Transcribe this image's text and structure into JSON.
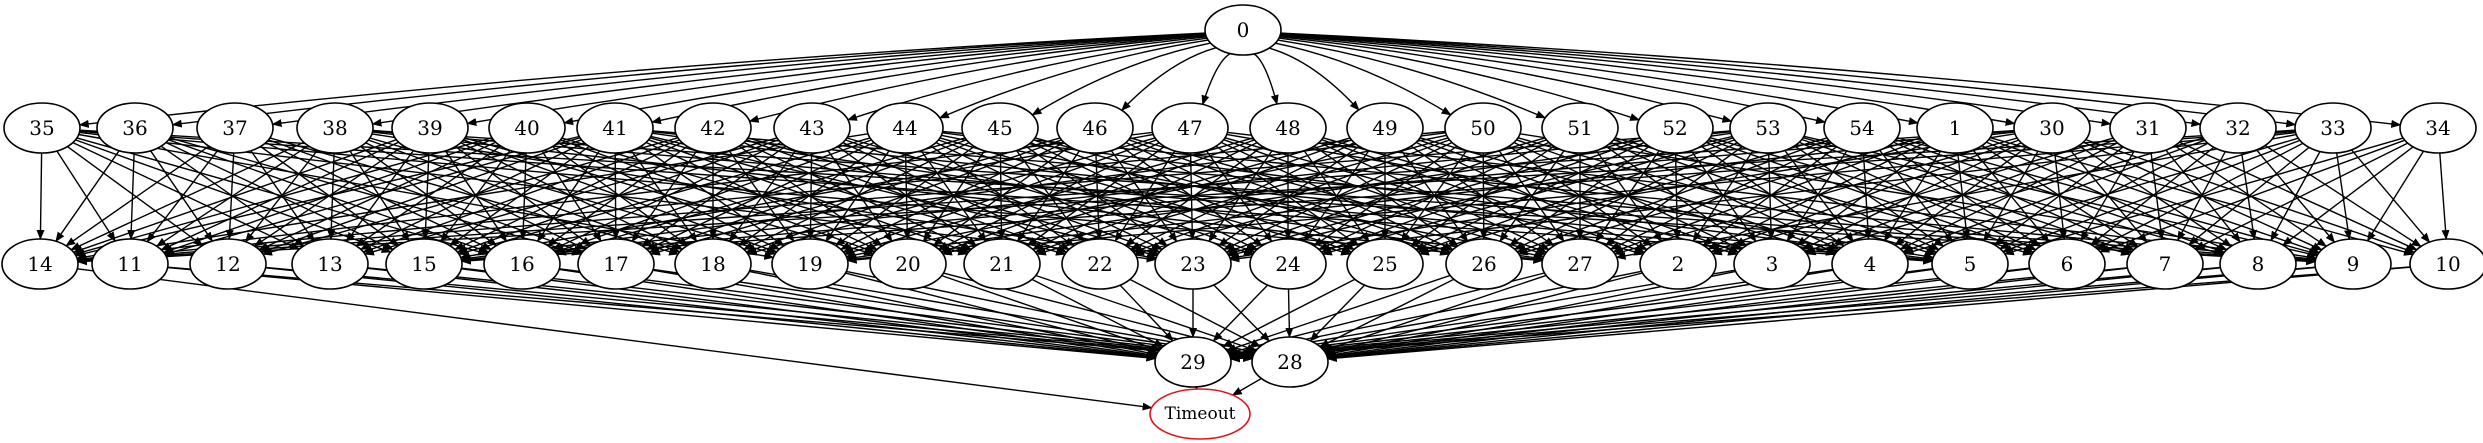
{
  "graph": {
    "colors": {
      "default": "#000000",
      "timeout": "#e0141b"
    },
    "nodes": [
      {
        "id": "0",
        "label": "0",
        "row": 0
      },
      {
        "id": "35",
        "label": "35",
        "row": 1
      },
      {
        "id": "36",
        "label": "36",
        "row": 1
      },
      {
        "id": "37",
        "label": "37",
        "row": 1
      },
      {
        "id": "38",
        "label": "38",
        "row": 1
      },
      {
        "id": "39",
        "label": "39",
        "row": 1
      },
      {
        "id": "40",
        "label": "40",
        "row": 1
      },
      {
        "id": "41",
        "label": "41",
        "row": 1
      },
      {
        "id": "42",
        "label": "42",
        "row": 1
      },
      {
        "id": "43",
        "label": "43",
        "row": 1
      },
      {
        "id": "44",
        "label": "44",
        "row": 1
      },
      {
        "id": "45",
        "label": "45",
        "row": 1
      },
      {
        "id": "46",
        "label": "46",
        "row": 1
      },
      {
        "id": "47",
        "label": "47",
        "row": 1
      },
      {
        "id": "48",
        "label": "48",
        "row": 1
      },
      {
        "id": "49",
        "label": "49",
        "row": 1
      },
      {
        "id": "50",
        "label": "50",
        "row": 1
      },
      {
        "id": "51",
        "label": "51",
        "row": 1
      },
      {
        "id": "52",
        "label": "52",
        "row": 1
      },
      {
        "id": "53",
        "label": "53",
        "row": 1
      },
      {
        "id": "54",
        "label": "54",
        "row": 1
      },
      {
        "id": "1",
        "label": "1",
        "row": 1
      },
      {
        "id": "30",
        "label": "30",
        "row": 1
      },
      {
        "id": "31",
        "label": "31",
        "row": 1
      },
      {
        "id": "32",
        "label": "32",
        "row": 1
      },
      {
        "id": "33",
        "label": "33",
        "row": 1
      },
      {
        "id": "34",
        "label": "34",
        "row": 1
      },
      {
        "id": "14",
        "label": "14",
        "row": 2
      },
      {
        "id": "11",
        "label": "11",
        "row": 2
      },
      {
        "id": "12",
        "label": "12",
        "row": 2
      },
      {
        "id": "13",
        "label": "13",
        "row": 2
      },
      {
        "id": "15",
        "label": "15",
        "row": 2
      },
      {
        "id": "16",
        "label": "16",
        "row": 2
      },
      {
        "id": "17",
        "label": "17",
        "row": 2
      },
      {
        "id": "18",
        "label": "18",
        "row": 2
      },
      {
        "id": "19",
        "label": "19",
        "row": 2
      },
      {
        "id": "20",
        "label": "20",
        "row": 2
      },
      {
        "id": "21",
        "label": "21",
        "row": 2
      },
      {
        "id": "22",
        "label": "22",
        "row": 2
      },
      {
        "id": "23",
        "label": "23",
        "row": 2
      },
      {
        "id": "24",
        "label": "24",
        "row": 2
      },
      {
        "id": "25",
        "label": "25",
        "row": 2
      },
      {
        "id": "26",
        "label": "26",
        "row": 2
      },
      {
        "id": "27",
        "label": "27",
        "row": 2
      },
      {
        "id": "2",
        "label": "2",
        "row": 2
      },
      {
        "id": "3",
        "label": "3",
        "row": 2
      },
      {
        "id": "4",
        "label": "4",
        "row": 2
      },
      {
        "id": "5",
        "label": "5",
        "row": 2
      },
      {
        "id": "6",
        "label": "6",
        "row": 2
      },
      {
        "id": "7",
        "label": "7",
        "row": 2
      },
      {
        "id": "8",
        "label": "8",
        "row": 2
      },
      {
        "id": "9",
        "label": "9",
        "row": 2
      },
      {
        "id": "10",
        "label": "10",
        "row": 2
      },
      {
        "id": "29",
        "label": "29",
        "row": 3
      },
      {
        "id": "28",
        "label": "28",
        "row": 3
      },
      {
        "id": "Timeout",
        "label": "Timeout",
        "row": 4,
        "color": "#e0141b"
      }
    ]
  }
}
